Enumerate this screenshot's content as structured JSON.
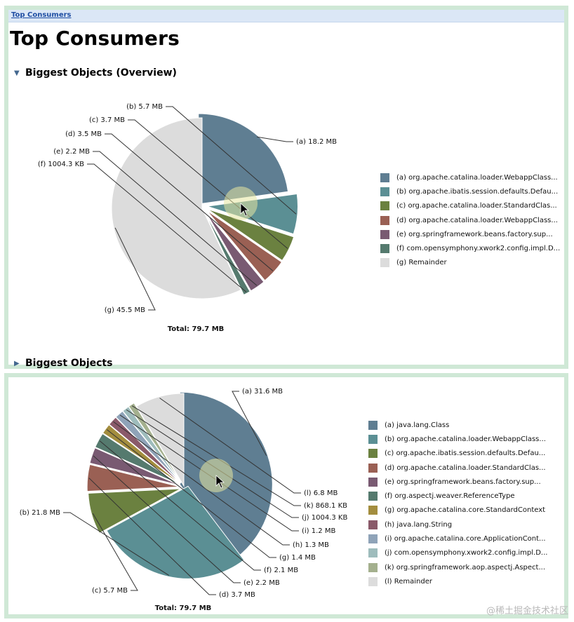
{
  "breadcrumb": {
    "label": "Top Consumers"
  },
  "page_title": "Top Consumers",
  "sections": {
    "overview": {
      "label": "Biggest Objects (Overview)",
      "expanded": true
    },
    "biggest": {
      "label": "Biggest Objects",
      "expanded": false
    }
  },
  "watermark": "@稀土掘金技术社区",
  "colors": {
    "panel_border": "#cfe8d6",
    "breadcrumb_bg": "#dbe7f6",
    "link": "#1f4ea3"
  },
  "chart_data": [
    {
      "type": "pie",
      "title": "Biggest Objects (Overview)",
      "total_label": "Total: 79.7 MB",
      "slices": [
        {
          "key": "(a)",
          "value": 18.2,
          "value_label": "18.2 MB",
          "label": "org.apache.catalina.loader.WebappClass...",
          "color": "#5f7e92"
        },
        {
          "key": "(b)",
          "value": 5.7,
          "value_label": "5.7 MB",
          "label": "org.apache.ibatis.session.defaults.Defau...",
          "color": "#5b8f94"
        },
        {
          "key": "(c)",
          "value": 3.7,
          "value_label": "3.7 MB",
          "label": "org.apache.catalina.loader.StandardClas...",
          "color": "#6b8140"
        },
        {
          "key": "(d)",
          "value": 3.5,
          "value_label": "3.5 MB",
          "label": "org.apache.catalina.loader.WebappClass...",
          "color": "#9a6054"
        },
        {
          "key": "(e)",
          "value": 2.2,
          "value_label": "2.2 MB",
          "label": "org.springframework.beans.factory.sup...",
          "color": "#795a72"
        },
        {
          "key": "(f)",
          "value": 0.98,
          "value_label": "1004.3 KB",
          "label": "com.opensymphony.xwork2.config.impl.D...",
          "color": "#557a6e"
        },
        {
          "key": "(g)",
          "value": 45.5,
          "value_label": "45.5 MB",
          "label": "Remainder",
          "color": "#dcdcdc"
        }
      ]
    },
    {
      "type": "pie",
      "title": "Biggest Objects",
      "total_label": "Total: 79.7 MB",
      "slices": [
        {
          "key": "(a)",
          "value": 31.6,
          "value_label": "31.6 MB",
          "label": "java.lang.Class",
          "color": "#5f7e92"
        },
        {
          "key": "(b)",
          "value": 21.8,
          "value_label": "21.8 MB",
          "label": "org.apache.catalina.loader.WebappClass...",
          "color": "#5b8f94"
        },
        {
          "key": "(c)",
          "value": 5.7,
          "value_label": "5.7 MB",
          "label": "org.apache.ibatis.session.defaults.Defau...",
          "color": "#6b8140"
        },
        {
          "key": "(d)",
          "value": 3.7,
          "value_label": "3.7 MB",
          "label": "org.apache.catalina.loader.StandardClas...",
          "color": "#9a6054"
        },
        {
          "key": "(e)",
          "value": 2.2,
          "value_label": "2.2 MB",
          "label": "org.springframework.beans.factory.sup...",
          "color": "#795a72"
        },
        {
          "key": "(f)",
          "value": 2.1,
          "value_label": "2.1 MB",
          "label": "org.aspectj.weaver.ReferenceType",
          "color": "#557a6e"
        },
        {
          "key": "(g)",
          "value": 1.4,
          "value_label": "1.4 MB",
          "label": "org.apache.catalina.core.StandardContext",
          "color": "#a38d3e"
        },
        {
          "key": "(h)",
          "value": 1.3,
          "value_label": "1.3 MB",
          "label": "java.lang.String",
          "color": "#8a5a6a"
        },
        {
          "key": "(i)",
          "value": 1.2,
          "value_label": "1.2 MB",
          "label": "org.apache.catalina.core.ApplicationCont...",
          "color": "#8fa3b8"
        },
        {
          "key": "(j)",
          "value": 0.98,
          "value_label": "1004.3 KB",
          "label": "com.opensymphony.xwork2.config.impl.D...",
          "color": "#9ebcbc"
        },
        {
          "key": "(k)",
          "value": 0.85,
          "value_label": "868.1 KB",
          "label": "org.springframework.aop.aspectj.Aspect...",
          "color": "#a4b08e"
        },
        {
          "key": "(l)",
          "value": 6.8,
          "value_label": "6.8 MB",
          "label": "Remainder",
          "color": "#dcdcdc"
        }
      ]
    }
  ]
}
